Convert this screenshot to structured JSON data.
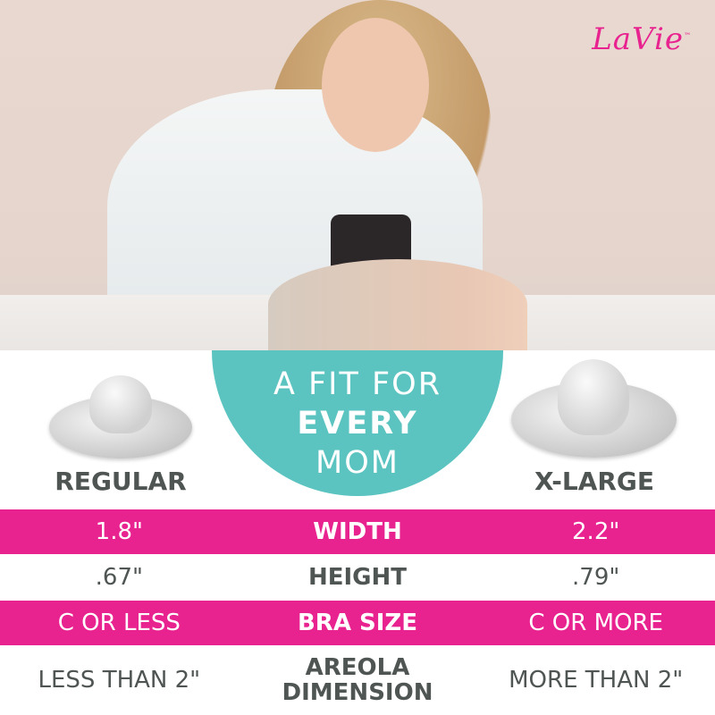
{
  "brand": {
    "logo_text": "LaVie",
    "trademark": "™"
  },
  "badge": {
    "line1": "A FIT FOR",
    "line2": "EVERY",
    "line3": "MOM"
  },
  "sizes": {
    "left": "REGULAR",
    "right": "X-LARGE"
  },
  "table": {
    "rows": [
      {
        "left": "1.8\"",
        "label": "WIDTH",
        "right": "2.2\"",
        "style": "pink"
      },
      {
        "left": ".67\"",
        "label": "HEIGHT",
        "right": ".79\"",
        "style": "white"
      },
      {
        "left": "C OR LESS",
        "label": "BRA SIZE",
        "right": "C OR MORE",
        "style": "pink"
      },
      {
        "left": "LESS THAN 2\"",
        "label_line1": "AREOLA",
        "label_line2": "DIMENSION",
        "right": "MORE THAN 2\"",
        "style": "white"
      }
    ]
  },
  "colors": {
    "pink": "#e8228f",
    "teal": "#5bc4c0",
    "text_gray": "#4f5553"
  }
}
